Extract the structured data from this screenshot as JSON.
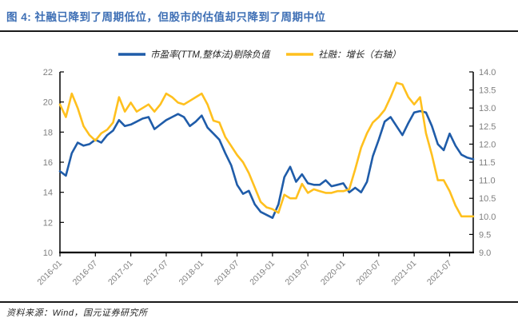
{
  "figure": {
    "title": "图 4: 社融已降到了周期低位，但股市的估值却只降到了周期中位",
    "source": "资料来源：Wind，国元证券研究所"
  },
  "colors": {
    "title": "#3E6FB5",
    "rule": "#1A1A1A",
    "axis_line": "#000000",
    "axis_text": "#7F7F7F",
    "legend_text": "#262626",
    "pe_line": "#1F5CA9",
    "sf_line": "#FFC01E"
  },
  "chart_data": {
    "type": "line",
    "grid": false,
    "legend_position": "top-center",
    "x_start": "2016-01",
    "x_step_months": 1,
    "x_tick_every": 6,
    "x_tick_labels": [
      "2016-01",
      "2016-07",
      "2017-01",
      "2017-07",
      "2018-01",
      "2018-07",
      "2019-01",
      "2019-07",
      "2020-01",
      "2020-07",
      "2021-01",
      "2021-07"
    ],
    "left_axis": {
      "min": 10,
      "max": 22,
      "decimals": 0,
      "ticks": [
        22,
        20,
        18,
        16,
        14,
        12,
        10
      ]
    },
    "right_axis": {
      "min": 9,
      "max": 14,
      "decimals": 1,
      "ticks": [
        14,
        13.5,
        13,
        12.5,
        12,
        11.5,
        11,
        10.5,
        10,
        9.5,
        9
      ]
    },
    "series": [
      {
        "name": "市盈率(TTM,整体法)剔除负值",
        "axis": "left",
        "color": "#1F5CA9",
        "values": [
          15.4,
          15.1,
          16.6,
          17.3,
          17.1,
          17.2,
          17.5,
          17.3,
          17.8,
          18.1,
          18.8,
          18.4,
          18.5,
          18.7,
          18.9,
          19.0,
          18.2,
          18.5,
          18.8,
          19.0,
          19.2,
          19.0,
          18.4,
          18.7,
          19.1,
          18.3,
          17.9,
          17.5,
          16.6,
          15.8,
          14.5,
          13.9,
          14.1,
          13.2,
          12.7,
          12.5,
          12.3,
          13.2,
          15.0,
          15.7,
          14.7,
          15.2,
          14.6,
          14.5,
          14.5,
          14.8,
          14.4,
          14.5,
          14.6,
          14.0,
          14.3,
          14.0,
          14.7,
          16.4,
          17.5,
          18.7,
          19.0,
          18.4,
          17.8,
          18.6,
          19.3,
          19.4,
          19.3,
          18.4,
          17.2,
          16.8,
          17.9,
          17.1,
          16.5,
          16.3,
          16.2
        ]
      },
      {
        "name": "社融：增长（右轴）",
        "axis": "right",
        "color": "#FFC01E",
        "values": [
          13.1,
          12.75,
          13.4,
          13.0,
          12.5,
          12.25,
          12.1,
          12.3,
          12.4,
          12.6,
          13.3,
          12.9,
          13.15,
          12.9,
          13.0,
          13.1,
          12.9,
          13.1,
          13.4,
          13.3,
          13.15,
          13.1,
          13.2,
          13.3,
          13.4,
          13.1,
          12.65,
          12.6,
          12.2,
          11.95,
          11.7,
          11.5,
          11.2,
          10.8,
          10.4,
          10.25,
          10.2,
          10.1,
          10.6,
          10.5,
          10.5,
          10.9,
          10.65,
          10.75,
          10.7,
          10.65,
          10.65,
          10.7,
          10.7,
          10.75,
          11.3,
          11.9,
          12.3,
          12.6,
          12.75,
          12.95,
          13.3,
          13.7,
          13.65,
          13.3,
          13.1,
          13.3,
          12.3,
          11.7,
          11.0,
          11.0,
          10.7,
          10.3,
          10.0,
          10.0,
          10.0
        ]
      }
    ]
  }
}
